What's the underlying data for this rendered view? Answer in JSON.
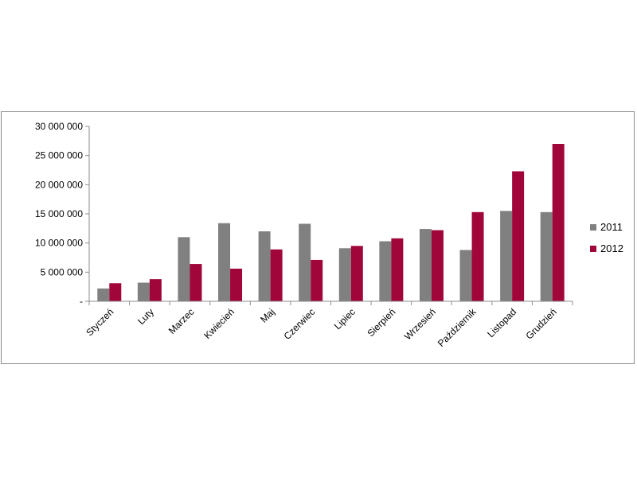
{
  "chart_data": {
    "type": "bar",
    "title": "",
    "xlabel": "",
    "ylabel": "",
    "categories": [
      "Styczeń",
      "Luty",
      "Marzec",
      "Kwiecień",
      "Maj",
      "Czerwiec",
      "Lipiec",
      "Sierpień",
      "Wrzesień",
      "Październik",
      "Listopad",
      "Grudzień"
    ],
    "series": [
      {
        "name": "2011",
        "color": "#808080",
        "values": [
          2200000,
          3200000,
          11000000,
          13400000,
          12000000,
          13300000,
          9100000,
          10300000,
          12400000,
          8800000,
          15500000,
          15300000
        ]
      },
      {
        "name": "2012",
        "color": "#a0063a",
        "values": [
          3100000,
          3800000,
          6400000,
          5600000,
          8900000,
          7100000,
          9500000,
          10800000,
          12200000,
          15300000,
          22300000,
          27000000
        ]
      }
    ],
    "ylim": [
      0,
      30000000
    ],
    "yticks": [
      0,
      5000000,
      10000000,
      15000000,
      20000000,
      25000000,
      30000000
    ],
    "ytick_labels": [
      "-",
      "5 000 000",
      "10 000 000",
      "15 000 000",
      "20 000 000",
      "25 000 000",
      "30 000 000"
    ],
    "grid": false,
    "legend_position": "right"
  }
}
